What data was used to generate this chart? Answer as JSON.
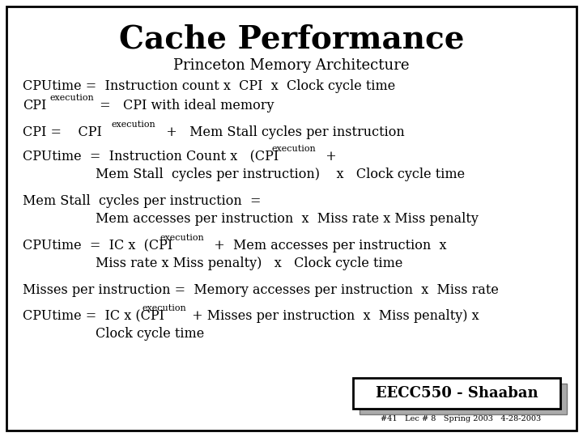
{
  "title": "Cache Performance",
  "subtitle": "Princeton Memory Architecture",
  "bg_color": "#ffffff",
  "border_color": "#000000",
  "text_color": "#000000",
  "footer_box_text": "EECC550 - Shaaban",
  "footer_small_text": "#41   Lec # 8   Spring 2003   4-28-2003",
  "title_fontsize": 28,
  "subtitle_fontsize": 13,
  "body_fontsize": 11.5,
  "sub_fontsize": 8,
  "footer_fontsize": 13,
  "footer_small_fontsize": 7
}
